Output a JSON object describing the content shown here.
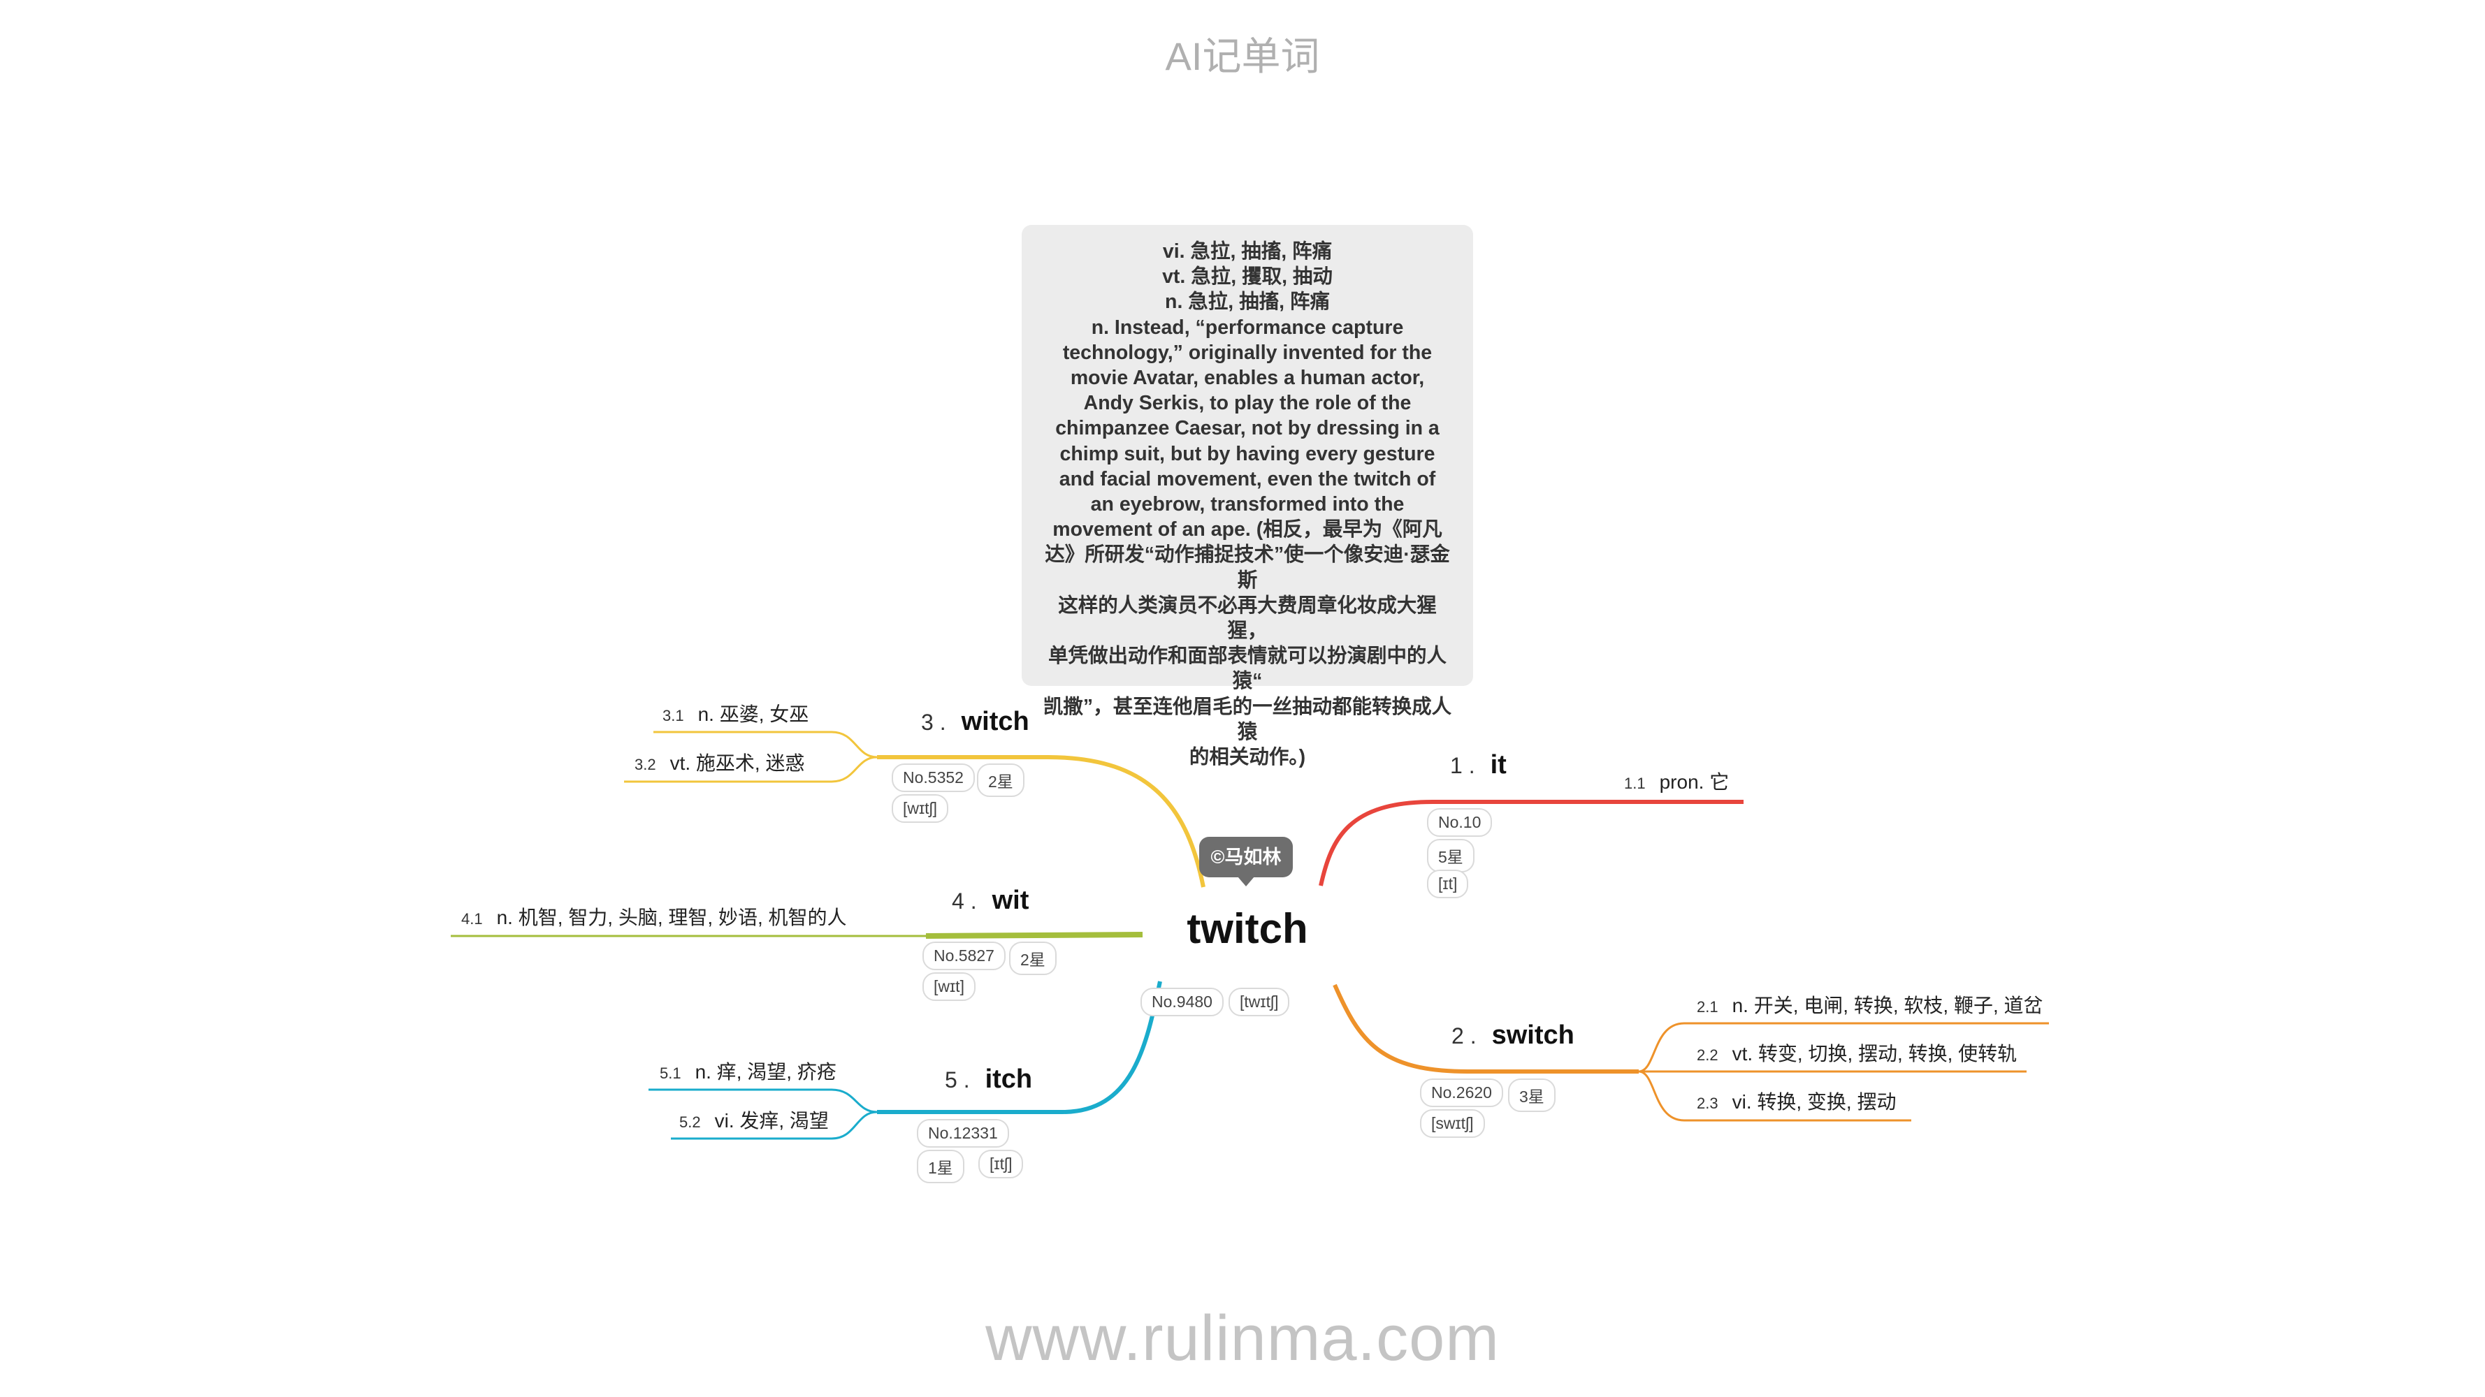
{
  "header": {
    "title": "AI记单词"
  },
  "footer": {
    "url": "www.rulinma.com"
  },
  "central": {
    "word": "twitch",
    "badge": "©马如林",
    "tags": [
      "No.9480",
      "[twɪtʃ]"
    ]
  },
  "note": {
    "lines": [
      "vi. 急拉, 抽搐, 阵痛",
      "vt. 急拉, 攫取, 抽动",
      "n. 急拉, 抽搐, 阵痛",
      "n. Instead, “performance capture",
      "technology,” originally invented for the",
      "movie Avatar, enables a human actor,",
      "Andy Serkis, to play the role of the",
      "chimpanzee Caesar, not by dressing in a",
      "chimp suit, but by having every gesture",
      "and facial movement, even the twitch of",
      "an eyebrow, transformed into the",
      "movement of an ape. (相反，最早为《阿凡",
      "达》所研发“动作捕捉技术”使一个像安迪·瑟金斯",
      "这样的人类演员不必再大费周章化妆成大猩猩，",
      "单凭做出动作和面部表情就可以扮演剧中的人猿“",
      "凯撒”，甚至连他眉毛的一丝抽动都能转换成人猿",
      "的相关动作。)"
    ]
  },
  "branches": [
    {
      "num": "1 .",
      "word": "it",
      "color": "#e8453c",
      "tags": [
        "No.10",
        "5星",
        "[ɪt]"
      ],
      "senses": [
        {
          "idx": "1.1",
          "text": "pron. 它"
        }
      ]
    },
    {
      "num": "2 .",
      "word": "switch",
      "color": "#ee922a",
      "tags": [
        "No.2620",
        "3星",
        "[swɪtʃ]"
      ],
      "senses": [
        {
          "idx": "2.1",
          "text": "n. 开关, 电闸, 转换, 软枝, 鞭子, 道岔"
        },
        {
          "idx": "2.2",
          "text": "vt. 转变, 切换, 摆动, 转换, 使转轨"
        },
        {
          "idx": "2.3",
          "text": "vi. 转换, 变换, 摆动"
        }
      ]
    },
    {
      "num": "3 .",
      "word": "witch",
      "color": "#f2c53c",
      "tags": [
        "No.5352",
        "2星",
        "[wɪtʃ]"
      ],
      "senses": [
        {
          "idx": "3.1",
          "text": "n. 巫婆, 女巫"
        },
        {
          "idx": "3.2",
          "text": "vt. 施巫术, 迷惑"
        }
      ]
    },
    {
      "num": "4 .",
      "word": "wit",
      "color": "#a4be3c",
      "tags": [
        "No.5827",
        "2星",
        "[wɪt]"
      ],
      "senses": [
        {
          "idx": "4.1",
          "text": "n. 机智, 智力, 头脑, 理智, 妙语, 机智的人"
        }
      ]
    },
    {
      "num": "5 .",
      "word": "itch",
      "color": "#1aaccc",
      "tags": [
        "No.12331",
        "1星",
        "[ɪtʃ]"
      ],
      "senses": [
        {
          "idx": "5.1",
          "text": "n. 痒, 渴望, 疥疮"
        },
        {
          "idx": "5.2",
          "text": "vi. 发痒, 渴望"
        }
      ]
    }
  ]
}
